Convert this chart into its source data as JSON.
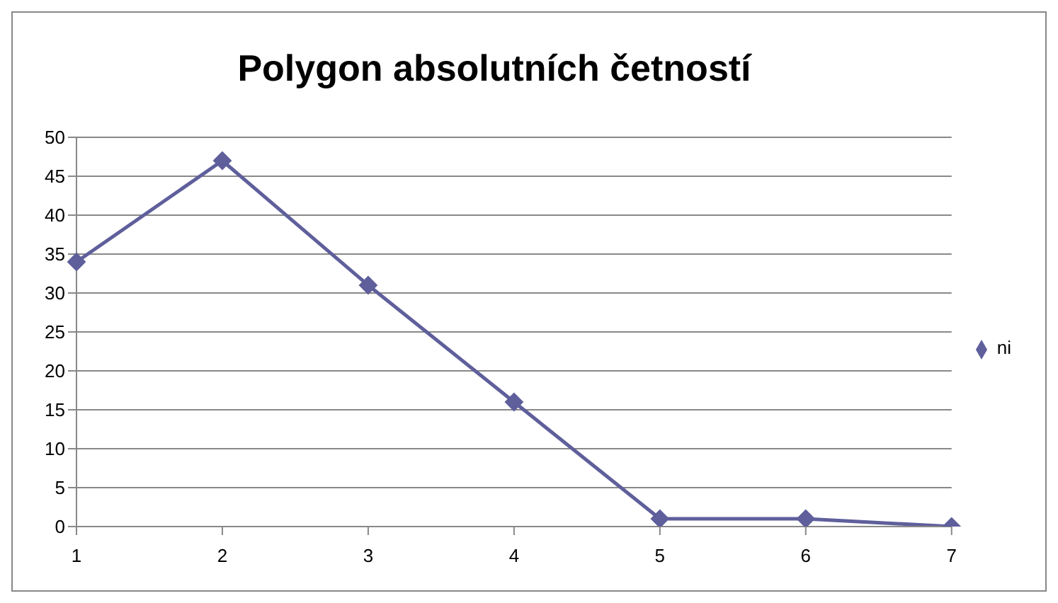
{
  "chart_data": {
    "type": "line",
    "title": "Polygon absolutních četností",
    "categories": [
      "1",
      "2",
      "3",
      "4",
      "5",
      "6",
      "7"
    ],
    "series": [
      {
        "name": "ni",
        "color": "#5f5f9c",
        "values": [
          34,
          47,
          31,
          16,
          1,
          1,
          0
        ]
      }
    ],
    "ylim": [
      0,
      50
    ],
    "yticks": [
      0,
      5,
      10,
      15,
      20,
      25,
      30,
      35,
      40,
      45,
      50
    ],
    "grid": "y",
    "legend": "right",
    "marker": "diamond",
    "line_style": "solid"
  }
}
